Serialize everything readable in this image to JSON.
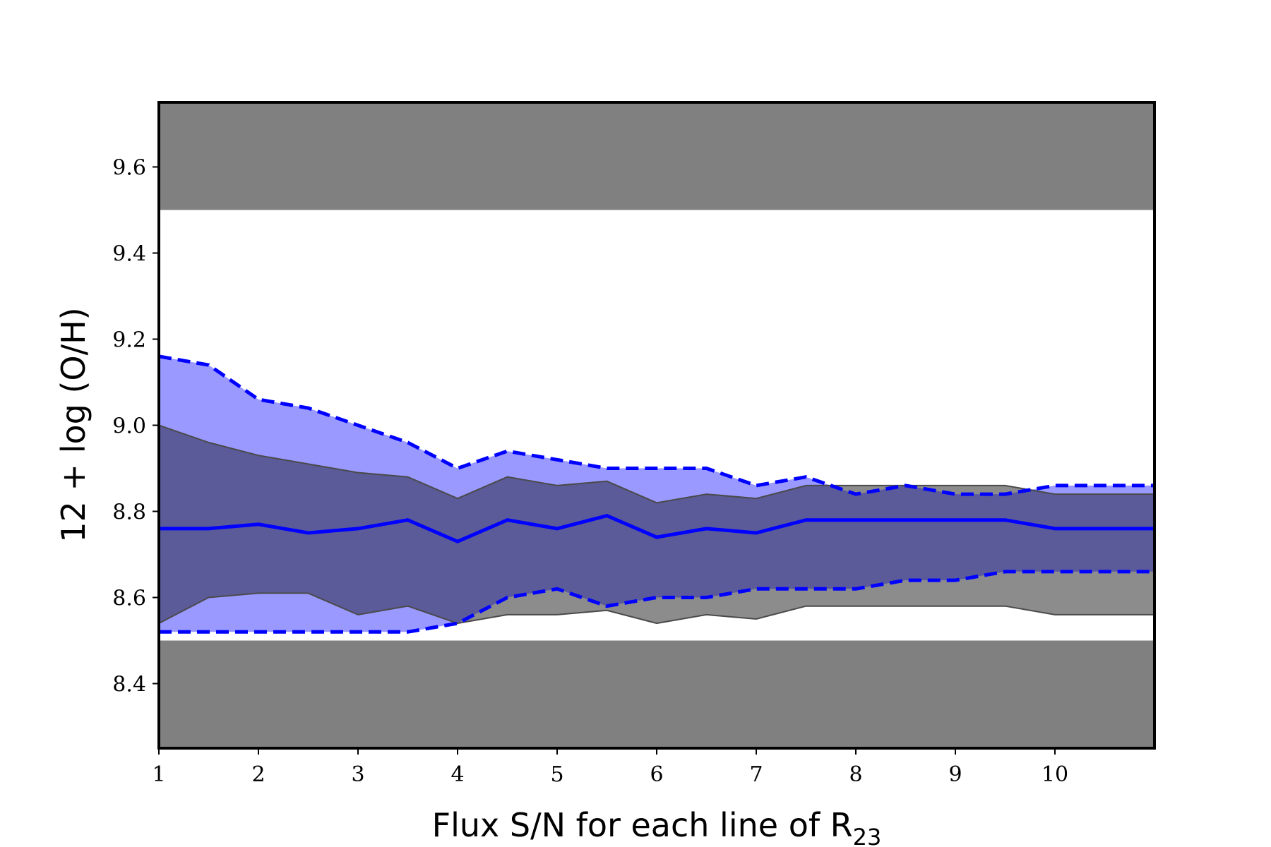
{
  "chart_data": {
    "type": "area",
    "title": "",
    "xlabel": "Flux S/N for each line of R",
    "xlabel_subscript": "23",
    "ylabel": "12 + log (O/H)",
    "xlim": [
      1,
      11
    ],
    "ylim": [
      8.25,
      9.75
    ],
    "xticks": [
      1,
      2,
      3,
      4,
      5,
      6,
      7,
      8,
      9,
      10
    ],
    "yticks": [
      "8.4",
      "8.6",
      "8.8",
      "9.0",
      "9.2",
      "9.4",
      "9.6"
    ],
    "grid": false,
    "colors": {
      "excluded_band": "#808080",
      "reference_range": "#8c8c8c",
      "blue_band": "#9999ff",
      "overlap": "#5b5b99",
      "median_line": "#0000ff",
      "axes": "#000000"
    },
    "excluded_bands": [
      {
        "y0": 8.25,
        "y1": 8.5
      },
      {
        "y0": 9.5,
        "y1": 9.75
      }
    ],
    "x": [
      1,
      1.5,
      2,
      2.5,
      3,
      3.5,
      4,
      4.5,
      5,
      5.5,
      6,
      6.5,
      7,
      7.5,
      8,
      8.5,
      9,
      9.5,
      10,
      10.5,
      11
    ],
    "series": [
      {
        "role": "gray-band",
        "upper": [
          9.0,
          8.96,
          8.93,
          8.91,
          8.89,
          8.88,
          8.83,
          8.88,
          8.86,
          8.87,
          8.82,
          8.84,
          8.83,
          8.86,
          8.86,
          8.86,
          8.86,
          8.86,
          8.84,
          8.84,
          8.84
        ],
        "lower": [
          8.54,
          8.6,
          8.61,
          8.61,
          8.56,
          8.58,
          8.54,
          8.56,
          8.56,
          8.57,
          8.54,
          8.56,
          8.55,
          8.58,
          8.58,
          8.58,
          8.58,
          8.58,
          8.56,
          8.56,
          8.56
        ]
      },
      {
        "role": "blue-band",
        "upper": [
          9.16,
          9.14,
          9.06,
          9.04,
          9.0,
          8.96,
          8.9,
          8.94,
          8.92,
          8.9,
          8.9,
          8.9,
          8.86,
          8.88,
          8.84,
          8.86,
          8.84,
          8.84,
          8.86,
          8.86,
          8.86
        ],
        "median": [
          8.76,
          8.76,
          8.77,
          8.75,
          8.76,
          8.78,
          8.73,
          8.78,
          8.76,
          8.79,
          8.74,
          8.76,
          8.75,
          8.78,
          8.78,
          8.78,
          8.78,
          8.78,
          8.76,
          8.76,
          8.76
        ],
        "lower": [
          8.52,
          8.52,
          8.52,
          8.52,
          8.52,
          8.52,
          8.54,
          8.6,
          8.62,
          8.58,
          8.6,
          8.6,
          8.62,
          8.62,
          8.62,
          8.64,
          8.64,
          8.66,
          8.66,
          8.66,
          8.66
        ]
      }
    ]
  }
}
